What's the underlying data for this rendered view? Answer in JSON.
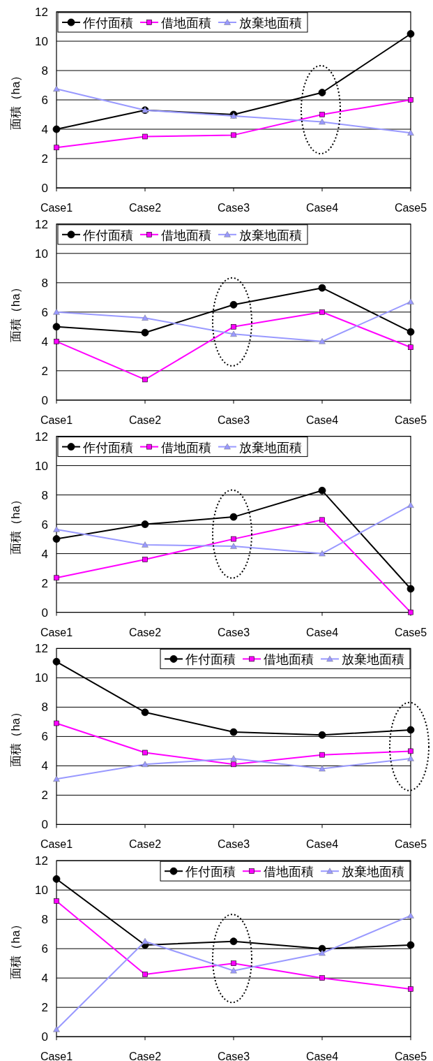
{
  "chart_data": [
    {
      "type": "line",
      "categories": [
        "Case1",
        "Case2",
        "Case3",
        "Case4",
        "Case5"
      ],
      "ylabel": "面積（ha）",
      "ylim": [
        0,
        12
      ],
      "yticks": [
        0,
        2,
        4,
        6,
        8,
        10,
        12
      ],
      "grid": "y",
      "legend": "top left",
      "series": [
        {
          "name": "作付面積",
          "color": "#000000",
          "marker": "circle",
          "values": [
            4.0,
            5.3,
            5.0,
            6.5,
            10.5
          ]
        },
        {
          "name": "借地面積",
          "color": "#ff00ff",
          "marker": "square",
          "values": [
            2.75,
            3.5,
            3.6,
            5.0,
            6.0
          ]
        },
        {
          "name": "放棄地面積",
          "color": "#9999ff",
          "marker": "triangle",
          "values": [
            6.75,
            5.3,
            4.9,
            4.5,
            3.75
          ]
        }
      ]
    },
    {
      "type": "line",
      "categories": [
        "Case1",
        "Case2",
        "Case3",
        "Case4",
        "Case5"
      ],
      "ylabel": "面積（ha）",
      "ylim": [
        0,
        12
      ],
      "yticks": [
        0,
        2,
        4,
        6,
        8,
        10,
        12
      ],
      "grid": "y",
      "legend": "top left",
      "series": [
        {
          "name": "作付面積",
          "color": "#000000",
          "marker": "circle",
          "values": [
            5.0,
            4.6,
            6.5,
            7.65,
            4.65
          ]
        },
        {
          "name": "借地面積",
          "color": "#ff00ff",
          "marker": "square",
          "values": [
            4.0,
            1.4,
            5.0,
            6.0,
            3.6
          ]
        },
        {
          "name": "放棄地面積",
          "color": "#9999ff",
          "marker": "triangle",
          "values": [
            6.0,
            5.6,
            4.5,
            4.0,
            6.7
          ]
        }
      ]
    },
    {
      "type": "line",
      "categories": [
        "Case1",
        "Case2",
        "Case3",
        "Case4",
        "Case5"
      ],
      "ylabel": "面積（ha）",
      "ylim": [
        0,
        12
      ],
      "yticks": [
        0,
        2,
        4,
        6,
        8,
        10,
        12
      ],
      "grid": "y",
      "legend": "top left",
      "series": [
        {
          "name": "作付面積",
          "color": "#000000",
          "marker": "circle",
          "values": [
            5.0,
            6.0,
            6.5,
            8.3,
            1.6
          ]
        },
        {
          "name": "借地面積",
          "color": "#ff00ff",
          "marker": "square",
          "values": [
            2.35,
            3.6,
            5.0,
            6.3,
            0.0
          ]
        },
        {
          "name": "放棄地面積",
          "color": "#9999ff",
          "marker": "triangle",
          "values": [
            5.65,
            4.6,
            4.5,
            4.0,
            7.3
          ]
        }
      ]
    },
    {
      "type": "line",
      "categories": [
        "Case1",
        "Case2",
        "Case3",
        "Case4",
        "Case5"
      ],
      "ylabel": "面積（ha）",
      "ylim": [
        0,
        12
      ],
      "yticks": [
        0,
        2,
        4,
        6,
        8,
        10,
        12
      ],
      "grid": "y",
      "legend": "top right",
      "series": [
        {
          "name": "作付面積",
          "color": "#000000",
          "marker": "circle",
          "values": [
            11.1,
            7.65,
            6.3,
            6.1,
            6.45
          ]
        },
        {
          "name": "借地面積",
          "color": "#ff00ff",
          "marker": "square",
          "values": [
            6.9,
            4.9,
            4.1,
            4.75,
            5.0
          ]
        },
        {
          "name": "放棄地面積",
          "color": "#9999ff",
          "marker": "triangle",
          "values": [
            3.1,
            4.1,
            4.5,
            3.8,
            4.5
          ]
        }
      ]
    },
    {
      "type": "line",
      "categories": [
        "Case1",
        "Case2",
        "Case3",
        "Case4",
        "Case5"
      ],
      "ylabel": "面積（ha）",
      "ylim": [
        0,
        12
      ],
      "yticks": [
        0,
        2,
        4,
        6,
        8,
        10,
        12
      ],
      "grid": "y",
      "legend": "top right",
      "series": [
        {
          "name": "作付面積",
          "color": "#000000",
          "marker": "circle",
          "values": [
            10.75,
            6.25,
            6.5,
            6.0,
            6.25
          ]
        },
        {
          "name": "借地面積",
          "color": "#ff00ff",
          "marker": "square",
          "values": [
            9.25,
            4.25,
            5.0,
            4.0,
            3.25
          ]
        },
        {
          "name": "放棄地面積",
          "color": "#9999ff",
          "marker": "triangle",
          "values": [
            0.5,
            6.5,
            4.5,
            5.7,
            8.25
          ]
        }
      ]
    }
  ]
}
